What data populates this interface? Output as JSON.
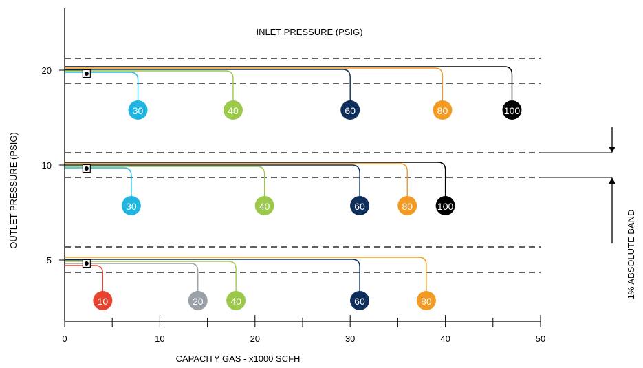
{
  "chart_data": {
    "type": "line",
    "title": "INLET  PRESSURE (PSIG)",
    "xlabel": "CAPACITY GAS - x1000 SCFH",
    "ylabel": "OUTLET PRESSURE (PSIG)",
    "xlim": [
      0,
      50
    ],
    "x_ticks": [
      "0",
      "10",
      "20",
      "30",
      "40",
      "50"
    ],
    "y_ticks": [
      "5",
      "10",
      "20"
    ],
    "band_label": "1% ABSOLUTE BAND",
    "colors": {
      "10": "#e8432e",
      "20": "#9aa1a8",
      "30": "#1eb6e0",
      "40": "#9cc94a",
      "60": "#0e2e5c",
      "80": "#f29a21",
      "100": "#000000"
    },
    "groups": [
      {
        "outlet": "20",
        "setpoint_capacity": 2.3,
        "curves": [
          {
            "inlet": "30",
            "capacity": 7.7
          },
          {
            "inlet": "40",
            "capacity": 17.7
          },
          {
            "inlet": "60",
            "capacity": 30.0
          },
          {
            "inlet": "80",
            "capacity": 39.7
          },
          {
            "inlet": "100",
            "capacity": 47.0
          }
        ]
      },
      {
        "outlet": "10",
        "setpoint_capacity": 2.3,
        "curves": [
          {
            "inlet": "30",
            "capacity": 7.0
          },
          {
            "inlet": "40",
            "capacity": 21.0
          },
          {
            "inlet": "60",
            "capacity": 31.0
          },
          {
            "inlet": "80",
            "capacity": 36.0
          },
          {
            "inlet": "100",
            "capacity": 40.0
          }
        ]
      },
      {
        "outlet": "5",
        "setpoint_capacity": 2.3,
        "curves": [
          {
            "inlet": "10",
            "capacity": 4.0
          },
          {
            "inlet": "20",
            "capacity": 14.0
          },
          {
            "inlet": "40",
            "capacity": 18.0
          },
          {
            "inlet": "60",
            "capacity": 31.0
          },
          {
            "inlet": "80",
            "capacity": 38.0
          }
        ]
      }
    ]
  }
}
